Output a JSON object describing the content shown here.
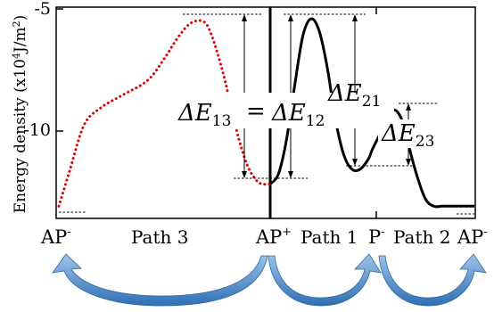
{
  "chart_data": {
    "type": "line",
    "ylabel": "Energy density (x10",
    "ylabel_exp": "4",
    "ylabel_unit": "J/m",
    "ylabel_unit_exp": "2",
    "ylabel_close": ")",
    "yticks": [
      "-5",
      "-10"
    ],
    "ylim": [
      -13.1,
      -4.9
    ],
    "x_state_labels": [
      {
        "base": "AP",
        "sup": "-"
      },
      {
        "base": "AP",
        "sup": "+"
      },
      {
        "base": "P",
        "sup": "-"
      },
      {
        "base": "AP",
        "sup": "-"
      }
    ],
    "path_labels": [
      "Path 3",
      "Path 1",
      "Path 2"
    ],
    "series": [
      {
        "style": "dotted",
        "color": "#e00000",
        "x": [
          0,
          0.05,
          0.12,
          0.2,
          0.3,
          0.42,
          0.5,
          0.56,
          0.62,
          0.68,
          0.72,
          0.78,
          0.84,
          0.89,
          0.93,
          0.96,
          1.0
        ],
        "y": [
          -12.9,
          -11.5,
          -9.6,
          -8.9,
          -8.4,
          -7.8,
          -6.9,
          -6.1,
          -5.5,
          -5.4,
          -5.9,
          -7.6,
          -9.8,
          -11.2,
          -11.8,
          -12.0,
          -12.0
        ]
      },
      {
        "style": "solid",
        "color": "#000000",
        "x": [
          0,
          0.04,
          0.08,
          0.12,
          0.16,
          0.2,
          0.24,
          0.28,
          0.32,
          0.36,
          0.4,
          0.44,
          0.48,
          0.5,
          0.53,
          0.57,
          0.61,
          0.65,
          0.68,
          0.72,
          0.76,
          0.8,
          0.84,
          0.88,
          0.92,
          0.96,
          1.0
        ],
        "y": [
          -12.0,
          -11.6,
          -10.2,
          -8.0,
          -6.0,
          -5.3,
          -5.8,
          -7.3,
          -9.4,
          -10.8,
          -11.4,
          -11.4,
          -11.0,
          -10.6,
          -10.1,
          -9.4,
          -9.0,
          -9.5,
          -10.5,
          -11.7,
          -12.6,
          -12.9,
          -12.9,
          -12.9,
          -12.9,
          -12.9,
          -12.9
        ]
      }
    ],
    "barriers": [
      {
        "base": "ΔE",
        "sub": "13"
      },
      {
        "base": "ΔE",
        "sub": "12"
      },
      {
        "base": "ΔE",
        "sub": "21"
      },
      {
        "base": "ΔE",
        "sub": "23"
      }
    ],
    "equals_sign": "=",
    "arrow_color": "#3e7fc6"
  }
}
